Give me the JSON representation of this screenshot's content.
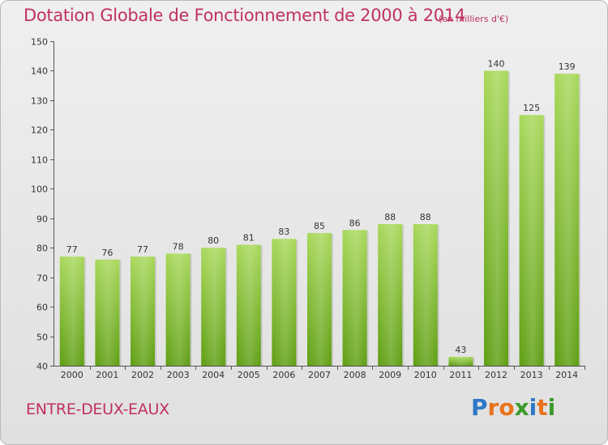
{
  "title": "Dotation Globale de Fonctionnement de 2000 à 2014",
  "unit_note": "(en milliers d'€)",
  "commune": "ENTRE-DEUX-EAUX",
  "logo": {
    "text": "Proxiti",
    "letters": [
      "P",
      "r",
      "o",
      "x",
      "i",
      "t",
      "i"
    ],
    "colors": [
      "#2e78c7",
      "#e8731c",
      "#e8731c",
      "#3a9a2a",
      "#2e78c7",
      "#e8731c",
      "#3a9a2a"
    ]
  },
  "colors": {
    "title": "#c0325e",
    "bar_top": "#a8d85a",
    "bar_bottom": "#5e9e12"
  },
  "chart_data": {
    "type": "bar",
    "title": "Dotation Globale de Fonctionnement de 2000 à 2014",
    "xlabel": "",
    "ylabel": "",
    "ylim": [
      40,
      150
    ],
    "yticks": [
      40,
      50,
      60,
      70,
      80,
      90,
      100,
      110,
      120,
      130,
      140,
      150
    ],
    "grid": false,
    "categories": [
      "2000",
      "2001",
      "2002",
      "2003",
      "2004",
      "2005",
      "2006",
      "2007",
      "2008",
      "2009",
      "2010",
      "2011",
      "2012",
      "2013",
      "2014"
    ],
    "values": [
      77,
      76,
      77,
      78,
      80,
      81,
      83,
      85,
      86,
      88,
      88,
      43,
      140,
      125,
      139
    ]
  }
}
